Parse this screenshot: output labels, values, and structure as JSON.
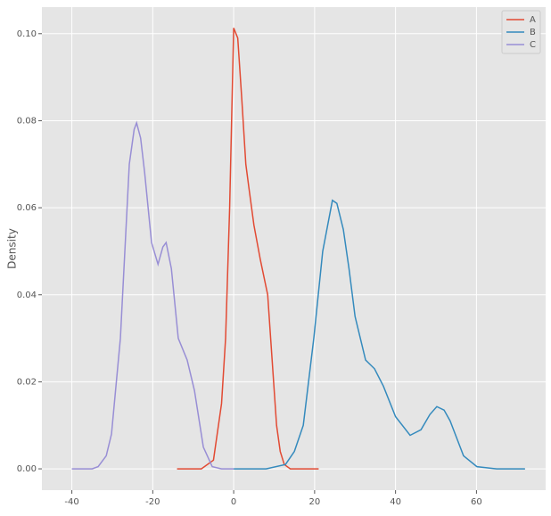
{
  "chart_data": {
    "type": "line",
    "y_label": "Density",
    "xlim": [
      -47.4,
      77.1
    ],
    "ylim": [
      -0.0049,
      0.1061
    ],
    "xticks": [
      -40,
      -20,
      0,
      20,
      40,
      60
    ],
    "yticks": [
      {
        "value": 0,
        "label": "0.00"
      },
      {
        "value": 0.02,
        "label": "0.02"
      },
      {
        "value": 0.04,
        "label": "0.04"
      },
      {
        "value": 0.06,
        "label": "0.06"
      },
      {
        "value": 0.08,
        "label": "0.08"
      },
      {
        "value": 0.1,
        "label": "0.10"
      }
    ],
    "grid": true,
    "legend": "upper right",
    "series": [
      {
        "name": "A",
        "color": "#E24A33",
        "x": [
          -14,
          -8,
          -5,
          -3,
          -2,
          -1,
          0,
          1,
          2,
          3,
          3.7,
          5,
          6.6,
          8.4,
          9.5,
          10.6,
          11.5,
          12.5,
          14,
          21
        ],
        "values": [
          0,
          0,
          0.002,
          0.015,
          0.03,
          0.06,
          0.1013,
          0.099,
          0.085,
          0.07,
          0.065,
          0.056,
          0.048,
          0.04,
          0.025,
          0.01,
          0.004,
          0.001,
          0,
          0
        ]
      },
      {
        "name": "B",
        "color": "#348ABD",
        "x": [
          0,
          8,
          12.8,
          15,
          17.2,
          19.8,
          22,
          24.4,
          25.5,
          27.1,
          28.5,
          30,
          32.6,
          34.8,
          37,
          40,
          43.6,
          46.3,
          48.5,
          50.2,
          52,
          53.5,
          56.8,
          60.1,
          65,
          72
        ],
        "values": [
          0,
          0,
          0.001,
          0.004,
          0.01,
          0.03,
          0.05,
          0.0617,
          0.061,
          0.055,
          0.046,
          0.035,
          0.025,
          0.023,
          0.019,
          0.012,
          0.0077,
          0.009,
          0.0125,
          0.0143,
          0.0135,
          0.011,
          0.003,
          0.0005,
          0,
          0
        ]
      },
      {
        "name": "C",
        "color": "#988ED5",
        "x": [
          -40,
          -35,
          -33.5,
          -31.5,
          -30.2,
          -28,
          -25.8,
          -24.6,
          -24,
          -23,
          -22,
          -20.3,
          -18.7,
          -17.5,
          -16.7,
          -15.4,
          -13.7,
          -11.5,
          -9.7,
          -7.5,
          -5.3,
          -3,
          0
        ],
        "values": [
          0,
          0,
          0.0005,
          0.003,
          0.008,
          0.03,
          0.07,
          0.078,
          0.0795,
          0.076,
          0.068,
          0.052,
          0.047,
          0.051,
          0.052,
          0.046,
          0.03,
          0.025,
          0.018,
          0.005,
          0.0005,
          0,
          0
        ]
      }
    ]
  }
}
